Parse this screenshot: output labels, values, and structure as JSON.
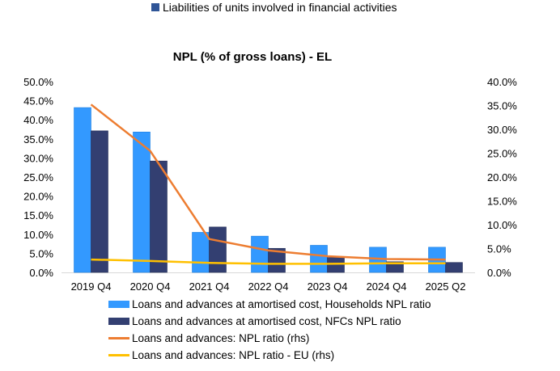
{
  "top_legend": {
    "label": "Liabilities of units involved in financial activities",
    "color": "#2f5597"
  },
  "chart_data": {
    "type": "bar",
    "title": "NPL (% of gross loans) - EL",
    "categories": [
      "2019 Q4",
      "2020 Q4",
      "2021 Q4",
      "2022 Q4",
      "2023 Q4",
      "2024 Q4",
      "2025 Q2"
    ],
    "y_left": {
      "ylim": [
        0,
        50
      ],
      "ticks": [
        "0.0%",
        "5.0%",
        "10.0%",
        "15.0%",
        "20.0%",
        "25.0%",
        "30.0%",
        "35.0%",
        "40.0%",
        "45.0%",
        "50.0%"
      ]
    },
    "y_right": {
      "ylim": [
        0,
        40
      ],
      "ticks": [
        "0.0%",
        "5.0%",
        "10.0%",
        "15.0%",
        "20.0%",
        "25.0%",
        "30.0%",
        "35.0%",
        "40.0%"
      ]
    },
    "grid": false,
    "legend_placement": "bottom",
    "series": [
      {
        "name": "Loans and advances at amortised cost, Households NPL ratio",
        "type": "bar",
        "axis": "left",
        "color": "#3399ff",
        "values": [
          43.2,
          36.8,
          10.5,
          9.5,
          7.1,
          6.6,
          6.6
        ]
      },
      {
        "name": "Loans and advances at amortised cost, NFCs NPL ratio",
        "type": "bar",
        "axis": "left",
        "color": "#333f71",
        "values": [
          37.1,
          29.2,
          11.9,
          6.3,
          3.9,
          2.8,
          2.6
        ]
      },
      {
        "name": "Loans and advances: NPL ratio (rhs)",
        "type": "line",
        "axis": "right",
        "color": "#ed7d31",
        "values": [
          35.2,
          25.5,
          7.0,
          4.6,
          3.4,
          2.8,
          2.7
        ]
      },
      {
        "name": "Loans and advances: NPL ratio - EU (rhs)",
        "type": "line",
        "axis": "right",
        "color": "#ffc000",
        "values": [
          2.7,
          2.4,
          2.0,
          1.8,
          1.8,
          1.9,
          1.9
        ]
      }
    ]
  }
}
